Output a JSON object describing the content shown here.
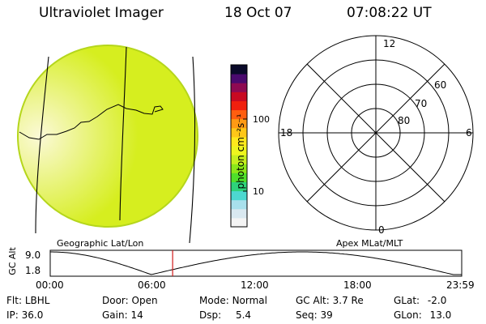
{
  "header": {
    "title": "Ultraviolet Imager",
    "date": "18 Oct 07",
    "time": "07:08:22 UT"
  },
  "colorbar": {
    "label": "photon cm⁻²s⁻¹",
    "ticks": [
      {
        "label": "100",
        "value": 100
      },
      {
        "label": "10",
        "value": 10
      }
    ],
    "colors": [
      "#f4f4f4",
      "#d9e8f0",
      "#a8e0ec",
      "#4dd8d0",
      "#2ed37a",
      "#4fe02a",
      "#8ce819",
      "#c6ef1e",
      "#eef51e",
      "#ffe91c",
      "#ffc718",
      "#ff9a14",
      "#ff5e10",
      "#f0200e",
      "#c80a22",
      "#8e0a52",
      "#4a0a6e",
      "#0a0a2a"
    ]
  },
  "left_panel": {
    "label": "Geographic Lat/Lon",
    "disk_color": "#d6ee1f",
    "glow_color": "#fbf9d6"
  },
  "right_panel": {
    "label": "Apex MLat/MLT",
    "lat_labels": [
      "60",
      "70",
      "80"
    ],
    "mlt_labels": {
      "top": "12",
      "left": "18",
      "right": "6",
      "bottom": "0"
    }
  },
  "orbit": {
    "axis_label": "GC Alt",
    "y_ticks": [
      "9.0",
      "1.8"
    ],
    "x_ticks": [
      "00:00",
      "06:00",
      "12:00",
      "18:00",
      "23:59"
    ],
    "current_time_hours": 7.14,
    "marker_color": "#d11b1b"
  },
  "info": {
    "flt_label": "Flt:",
    "flt_value": "LBHL",
    "door_label": "Door:",
    "door_value": "Open",
    "mode_label": "Mode:",
    "mode_value": "Normal",
    "gcalt_label": "GC Alt:",
    "gcalt_value": "3.7 Re",
    "glat_label": "GLat:",
    "glat_value": "-2.0",
    "ip_label": "IP:",
    "ip_value": "36.0",
    "gain_label": "Gain:",
    "gain_value": "14",
    "dsp_label": "Dsp:",
    "dsp_value": "5.4",
    "seq_label": "Seq:",
    "seq_value": "39",
    "glon_label": "GLon:",
    "glon_value": "13.0"
  }
}
